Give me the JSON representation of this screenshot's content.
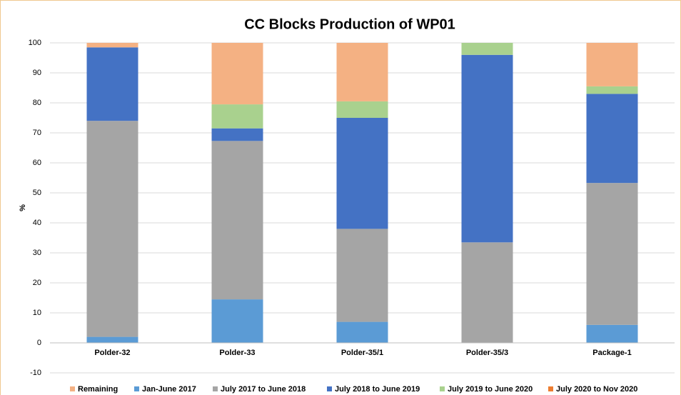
{
  "chart_data": {
    "type": "bar",
    "stacked": true,
    "title": "CC Blocks Production of WP01",
    "y_label": "%",
    "categories": [
      "Polder-32",
      "Polder-33",
      "Polder-35/1",
      "Polder-35/3",
      "Package-1"
    ],
    "series": [
      {
        "name": "Remaining",
        "color": "#f4b183",
        "values": [
          1.5,
          20.5,
          19.5,
          0,
          14.5
        ]
      },
      {
        "name": "Jan-June 2017",
        "color": "#5b9bd5",
        "values": [
          2,
          14.5,
          7,
          0,
          6
        ]
      },
      {
        "name": "July 2017 to June 2018",
        "color": "#a5a5a5",
        "values": [
          72,
          52.8,
          31,
          33.5,
          47.3
        ]
      },
      {
        "name": "July 2018 to June 2019",
        "color": "#4472c4",
        "values": [
          24.5,
          4.2,
          37,
          62.5,
          29.7
        ]
      },
      {
        "name": "July 2019 to June 2020",
        "color": "#a9d18e",
        "values": [
          0,
          8,
          5.5,
          4,
          2.5
        ]
      },
      {
        "name": "July 2020 to Nov 2020",
        "color": "#ed7d31",
        "values": [
          0,
          0,
          0,
          0,
          0
        ]
      }
    ],
    "ylim": [
      -10,
      100
    ],
    "yticks": [
      -10,
      0,
      10,
      20,
      30,
      40,
      50,
      60,
      70,
      80,
      90,
      100
    ],
    "grid": true,
    "legend": "bottom"
  }
}
